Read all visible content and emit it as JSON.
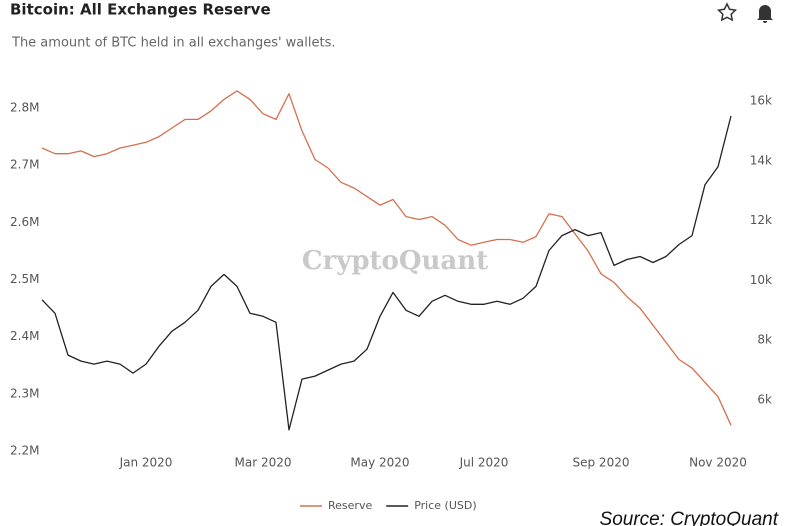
{
  "chart_data": {
    "type": "line",
    "title": "Bitcoin: All Exchanges Reserve",
    "subtitle": "The amount of BTC held in all exchanges' wallets.",
    "watermark": "CryptoQuant",
    "source": "Source: CryptoQuant",
    "categories": [
      null,
      null,
      null,
      null,
      null,
      null,
      null,
      null,
      "Jan 2020",
      null,
      null,
      null,
      null,
      null,
      null,
      null,
      null,
      "Mar 2020",
      null,
      null,
      null,
      null,
      null,
      null,
      null,
      null,
      "May 2020",
      null,
      null,
      null,
      null,
      null,
      null,
      null,
      "Jul 2020",
      null,
      null,
      null,
      null,
      null,
      null,
      null,
      null,
      "Sep 2020",
      null,
      null,
      null,
      null,
      null,
      null,
      null,
      null,
      "Nov 2020",
      null
    ],
    "series": [
      {
        "name": "Reserve",
        "color": "#d4704f",
        "axis": "y",
        "values": [
          2730000,
          2720000,
          2720000,
          2725000,
          2715000,
          2720000,
          2730000,
          2735000,
          2740000,
          2750000,
          2765000,
          2780000,
          2780000,
          2795000,
          2815000,
          2830000,
          2815000,
          2790000,
          2780000,
          2825000,
          2760000,
          2710000,
          2695000,
          2670000,
          2660000,
          2645000,
          2630000,
          2640000,
          2610000,
          2605000,
          2610000,
          2595000,
          2570000,
          2560000,
          2565000,
          2570000,
          2570000,
          2565000,
          2575000,
          2615000,
          2610000,
          2580000,
          2550000,
          2510000,
          2495000,
          2470000,
          2450000,
          2420000,
          2390000,
          2360000,
          2345000,
          2320000,
          2295000,
          2245000
        ]
      },
      {
        "name": "Price (USD)",
        "color": "#222222",
        "axis": "y2",
        "values": [
          9350,
          8900,
          7500,
          7300,
          7200,
          7300,
          7200,
          6900,
          7200,
          7800,
          8300,
          8600,
          9000,
          9800,
          10200,
          9800,
          8900,
          8800,
          8600,
          5000,
          6700,
          6800,
          7000,
          7200,
          7300,
          7700,
          8800,
          9600,
          9000,
          8800,
          9300,
          9500,
          9300,
          9200,
          9200,
          9300,
          9200,
          9400,
          9800,
          11000,
          11500,
          11700,
          11500,
          11600,
          10500,
          10700,
          10800,
          10600,
          10800,
          11200,
          11500,
          13200,
          13800,
          15500
        ]
      }
    ],
    "ylim": [
      2200000,
      2835000
    ],
    "yticks": [
      {
        "value": 2200000,
        "label": "2.2M"
      },
      {
        "value": 2300000,
        "label": "2.3M"
      },
      {
        "value": 2400000,
        "label": "2.4M"
      },
      {
        "value": 2500000,
        "label": "2.5M"
      },
      {
        "value": 2600000,
        "label": "2.6M"
      },
      {
        "value": 2700000,
        "label": "2.7M"
      },
      {
        "value": 2800000,
        "label": "2.8M"
      }
    ],
    "y2lim": [
      4294,
      16435
    ],
    "y2ticks": [
      {
        "value": 6000,
        "label": "6k"
      },
      {
        "value": 8000,
        "label": "8k"
      },
      {
        "value": 10000,
        "label": "10k"
      },
      {
        "value": 12000,
        "label": "12k"
      },
      {
        "value": 14000,
        "label": "14k"
      },
      {
        "value": 16000,
        "label": "16k"
      }
    ],
    "grid": false
  }
}
